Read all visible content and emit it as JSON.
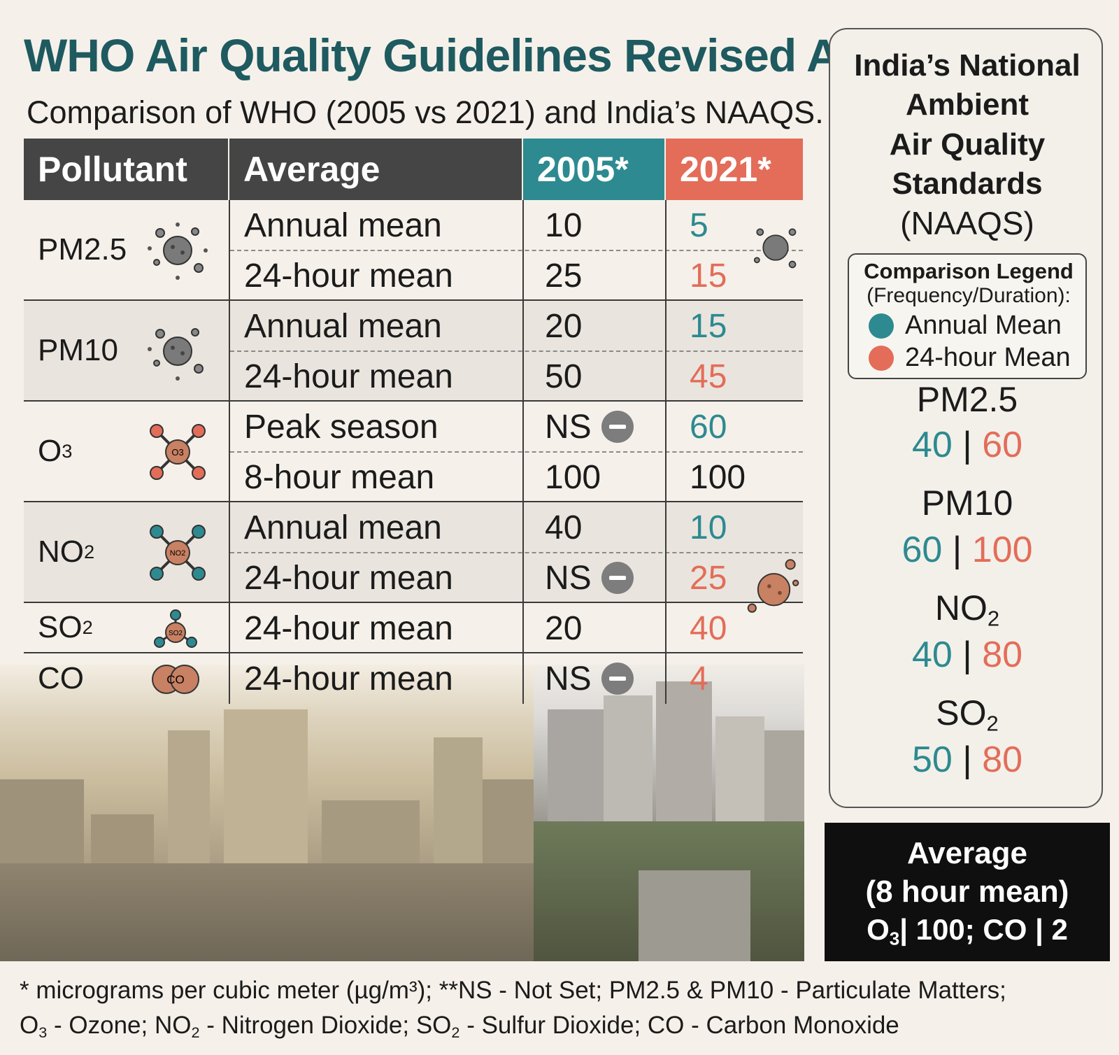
{
  "title": "WHO Air Quality Guidelines Revised After",
  "subtitle": "Comparison of WHO (2005 vs 2021) and India’s NAAQS.",
  "table": {
    "headers": {
      "pollutant": "Pollutant",
      "average": "Average",
      "y2005": "2005*",
      "y2021": "2021*"
    },
    "header_colors": {
      "dark": "#454545",
      "y2005": "#2d8a90",
      "y2021": "#e36d59"
    },
    "groups": [
      {
        "pollutant": "PM2.5",
        "rows": [
          {
            "average": "Annual mean",
            "v2005": "10",
            "v2021": "5"
          },
          {
            "average": "24-hour mean",
            "v2005": "25",
            "v2021": "15"
          }
        ]
      },
      {
        "pollutant": "PM10",
        "rows": [
          {
            "average": "Annual mean",
            "v2005": "20",
            "v2021": "15"
          },
          {
            "average": "24-hour mean",
            "v2005": "50",
            "v2021": "45"
          }
        ]
      },
      {
        "pollutant": "O",
        "pollutant_sub": "3",
        "rows": [
          {
            "average": "Peak season",
            "v2005": "NS",
            "v2021": "60"
          },
          {
            "average": "8-hour mean",
            "v2005": "100",
            "v2021": "100"
          }
        ]
      },
      {
        "pollutant": "NO",
        "pollutant_sub": "2",
        "rows": [
          {
            "average": "Annual mean",
            "v2005": "40",
            "v2021": "10"
          },
          {
            "average": "24-hour mean",
            "v2005": "NS",
            "v2021": "25"
          }
        ]
      },
      {
        "pollutant": "SO",
        "pollutant_sub": "2",
        "rows": [
          {
            "average": "24-hour mean",
            "v2005": "20",
            "v2021": "40"
          }
        ]
      },
      {
        "pollutant": "CO",
        "rows": [
          {
            "average": "24-hour mean",
            "v2005": "NS",
            "v2021": "4"
          }
        ]
      }
    ],
    "icons": [
      "particulate-icon",
      "particulate-icon",
      "ozone-molecule-icon",
      "no2-molecule-icon",
      "so2-molecule-icon",
      "co-molecule-icon",
      "not-set-icon"
    ],
    "icon_labels": {
      "o3": "O3",
      "no2": "NO2",
      "so2": "SO2",
      "co": "CO"
    }
  },
  "panel": {
    "title_lines": [
      "India’s National",
      "Ambient",
      "Air Quality",
      "Standards"
    ],
    "title_sub": "(NAAQS)",
    "legend": {
      "title": "Comparison Legend",
      "subtitle": "(Frequency/Duration):",
      "items": [
        {
          "label": "Annual Mean",
          "color": "#2d8a90"
        },
        {
          "label": "24-hour Mean",
          "color": "#e36d59"
        }
      ]
    },
    "standards": [
      {
        "name": "PM2.5",
        "annual": "40",
        "daily": "60"
      },
      {
        "name": "PM10",
        "annual": "60",
        "daily": "100"
      },
      {
        "name": "NO",
        "name_sub": "2",
        "annual": "40",
        "daily": "80"
      },
      {
        "name": "SO",
        "name_sub": "2",
        "annual": "50",
        "daily": "80"
      }
    ],
    "separator": "|"
  },
  "black_box": {
    "line1": "Average",
    "line2": "(8 hour mean)",
    "line3_o": "O",
    "line3_sub": "3",
    "line3_rest": "| 100; CO | 2"
  },
  "footnote": {
    "line1": "* micrograms per cubic meter (µg/m³); **NS - Not Set; PM2.5 & PM10 - Particulate Matters;",
    "line2_parts": [
      "O",
      "3",
      " - Ozone; NO",
      "2",
      " - Nitrogen Dioxide; SO",
      "2",
      " - Sulfur Dioxide; CO - Carbon Monoxide"
    ]
  },
  "colors": {
    "title": "#1e5a60",
    "teal": "#2d8a90",
    "coral": "#e36d59",
    "background": "#f5f1ea"
  }
}
